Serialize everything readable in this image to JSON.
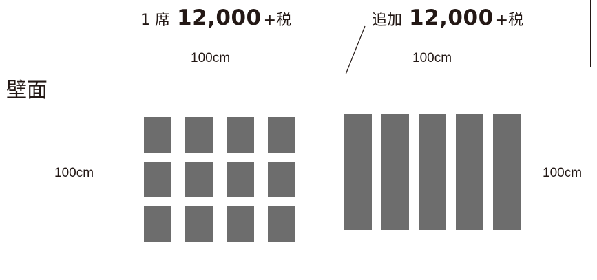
{
  "price_main": {
    "prefix": "1 席",
    "amount": "12,000",
    "suffix": "+税"
  },
  "price_extra": {
    "prefix": "追加",
    "amount": "12,000",
    "suffix": "+税"
  },
  "wall_label": "壁面",
  "dimensions": {
    "main_width": "100cm",
    "extra_width": "100cm",
    "main_height": "100cm",
    "extra_height": "100cm"
  },
  "colors": {
    "panel": "#6d6d6d",
    "line": "#231815",
    "dashed_line": "#6e6e6e"
  },
  "layout_notes": {
    "main_panels": {
      "rows": 3,
      "cols": 4
    },
    "extra_panels": {
      "rows": 1,
      "cols": 5
    }
  }
}
